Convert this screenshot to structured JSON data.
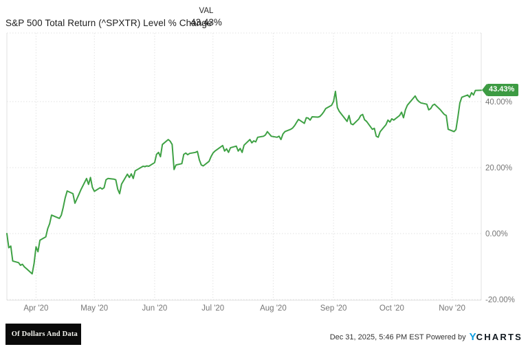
{
  "header": {
    "series_title": "S&P 500 Total Return (^SPXTR) Level % Change",
    "val_label": "VAL",
    "val_value": "43.43%"
  },
  "footer": {
    "logo_text": "Of Dollars And Data",
    "timestamp": "Dec 31, 2025, 5:46 PM EST",
    "powered_by": "Powered by",
    "brand_y": "Y",
    "brand_charts": "CHARTS"
  },
  "chart_data": {
    "type": "line",
    "title": "S&P 500 Total Return (^SPXTR) Level % Change",
    "grid": "dotted",
    "legend_position": "none",
    "line_color": "#3ea144",
    "grid_color": "#e2e2e2",
    "axis_label_color": "#757575",
    "badge": {
      "label": "43.43%",
      "bg": "#3d9b43",
      "text": "#ffffff"
    },
    "xlim": [
      "2020-03-17",
      "2020-11-16"
    ],
    "ylim": [
      -20.2,
      60.8
    ],
    "x_ticks": [
      {
        "date": "2020-04-01",
        "label": "Apr '20"
      },
      {
        "date": "2020-05-01",
        "label": "May '20"
      },
      {
        "date": "2020-06-01",
        "label": "Jun '20"
      },
      {
        "date": "2020-07-01",
        "label": "Jul '20"
      },
      {
        "date": "2020-08-01",
        "label": "Aug '20"
      },
      {
        "date": "2020-09-01",
        "label": "Sep '20"
      },
      {
        "date": "2020-10-01",
        "label": "Oct '20"
      },
      {
        "date": "2020-11-01",
        "label": "Nov '20"
      }
    ],
    "y_ticks": [
      {
        "value": 40,
        "label": "40.00%"
      },
      {
        "value": 20,
        "label": "20.00%"
      },
      {
        "value": 0,
        "label": "0.00%"
      },
      {
        "value": -20,
        "label": "-20.00%"
      }
    ],
    "series": [
      {
        "name": "S&P 500 Total Return (^SPXTR) Level % Change",
        "final_value": 43.43,
        "points": [
          [
            "2020-03-17",
            0.0
          ],
          [
            "2020-03-18",
            -4.3
          ],
          [
            "2020-03-19",
            -3.8
          ],
          [
            "2020-03-20",
            -8.3
          ],
          [
            "2020-03-23",
            -8.8
          ],
          [
            "2020-03-24",
            -9.6
          ],
          [
            "2020-03-25",
            -9.3
          ],
          [
            "2020-03-26",
            -10.1
          ],
          [
            "2020-03-27",
            -10.6
          ],
          [
            "2020-03-30",
            -12.2
          ],
          [
            "2020-03-31",
            -9.0
          ],
          [
            "2020-04-01",
            -4.0
          ],
          [
            "2020-04-02",
            -5.5
          ],
          [
            "2020-04-03",
            -2.0
          ],
          [
            "2020-04-06",
            -1.0
          ],
          [
            "2020-04-07",
            1.5
          ],
          [
            "2020-04-08",
            3.0
          ],
          [
            "2020-04-09",
            5.6
          ],
          [
            "2020-04-13",
            4.6
          ],
          [
            "2020-04-14",
            5.6
          ],
          [
            "2020-04-15",
            8.0
          ],
          [
            "2020-04-16",
            10.8
          ],
          [
            "2020-04-17",
            12.9
          ],
          [
            "2020-04-20",
            12.1
          ],
          [
            "2020-04-21",
            9.2
          ],
          [
            "2020-04-22",
            10.5
          ],
          [
            "2020-04-23",
            11.8
          ],
          [
            "2020-04-24",
            13.2
          ],
          [
            "2020-04-27",
            16.7
          ],
          [
            "2020-04-28",
            14.9
          ],
          [
            "2020-04-29",
            17.0
          ],
          [
            "2020-04-30",
            14.0
          ],
          [
            "2020-05-01",
            12.8
          ],
          [
            "2020-05-04",
            13.9
          ],
          [
            "2020-05-05",
            13.5
          ],
          [
            "2020-05-06",
            13.9
          ],
          [
            "2020-05-07",
            16.3
          ],
          [
            "2020-05-08",
            16.7
          ],
          [
            "2020-05-11",
            16.5
          ],
          [
            "2020-05-12",
            16.3
          ],
          [
            "2020-05-13",
            13.5
          ],
          [
            "2020-05-14",
            12.1
          ],
          [
            "2020-05-15",
            15.0
          ],
          [
            "2020-05-18",
            18.0
          ],
          [
            "2020-05-19",
            17.0
          ],
          [
            "2020-05-20",
            18.1
          ],
          [
            "2020-05-21",
            16.7
          ],
          [
            "2020-05-22",
            19.0
          ],
          [
            "2020-05-26",
            20.4
          ],
          [
            "2020-05-27",
            20.3
          ],
          [
            "2020-05-28",
            20.5
          ],
          [
            "2020-05-29",
            20.4
          ],
          [
            "2020-06-01",
            21.5
          ],
          [
            "2020-06-02",
            24.0
          ],
          [
            "2020-06-03",
            24.6
          ],
          [
            "2020-06-04",
            23.3
          ],
          [
            "2020-06-05",
            27.0
          ],
          [
            "2020-06-08",
            28.5
          ],
          [
            "2020-06-09",
            28.0
          ],
          [
            "2020-06-10",
            27.0
          ],
          [
            "2020-06-11",
            19.4
          ],
          [
            "2020-06-12",
            20.8
          ],
          [
            "2020-06-15",
            21.2
          ],
          [
            "2020-06-16",
            24.0
          ],
          [
            "2020-06-17",
            24.4
          ],
          [
            "2020-06-18",
            23.9
          ],
          [
            "2020-06-19",
            24.3
          ],
          [
            "2020-06-22",
            24.6
          ],
          [
            "2020-06-23",
            24.9
          ],
          [
            "2020-06-24",
            22.3
          ],
          [
            "2020-06-25",
            20.8
          ],
          [
            "2020-06-26",
            20.5
          ],
          [
            "2020-06-29",
            21.9
          ],
          [
            "2020-06-30",
            23.3
          ],
          [
            "2020-07-01",
            24.4
          ],
          [
            "2020-07-02",
            25.0
          ],
          [
            "2020-07-06",
            26.7
          ],
          [
            "2020-07-07",
            25.0
          ],
          [
            "2020-07-08",
            25.7
          ],
          [
            "2020-07-09",
            24.6
          ],
          [
            "2020-07-10",
            26.0
          ],
          [
            "2020-07-13",
            26.5
          ],
          [
            "2020-07-14",
            25.0
          ],
          [
            "2020-07-15",
            25.8
          ],
          [
            "2020-07-16",
            24.6
          ],
          [
            "2020-07-17",
            26.8
          ],
          [
            "2020-07-20",
            28.5
          ],
          [
            "2020-07-21",
            27.5
          ],
          [
            "2020-07-22",
            28.1
          ],
          [
            "2020-07-23",
            27.8
          ],
          [
            "2020-07-24",
            29.2
          ],
          [
            "2020-07-27",
            29.5
          ],
          [
            "2020-07-28",
            29.9
          ],
          [
            "2020-07-29",
            30.9
          ],
          [
            "2020-07-30",
            30.2
          ],
          [
            "2020-07-31",
            29.5
          ],
          [
            "2020-08-03",
            29.2
          ],
          [
            "2020-08-04",
            29.5
          ],
          [
            "2020-08-05",
            28.5
          ],
          [
            "2020-08-06",
            30.2
          ],
          [
            "2020-08-07",
            30.9
          ],
          [
            "2020-08-10",
            31.6
          ],
          [
            "2020-08-11",
            32.0
          ],
          [
            "2020-08-12",
            32.7
          ],
          [
            "2020-08-13",
            33.7
          ],
          [
            "2020-08-14",
            34.6
          ],
          [
            "2020-08-17",
            33.4
          ],
          [
            "2020-08-18",
            35.1
          ],
          [
            "2020-08-19",
            35.0
          ],
          [
            "2020-08-20",
            34.4
          ],
          [
            "2020-08-21",
            35.4
          ],
          [
            "2020-08-24",
            35.3
          ],
          [
            "2020-08-25",
            35.5
          ],
          [
            "2020-08-26",
            36.1
          ],
          [
            "2020-08-27",
            36.9
          ],
          [
            "2020-08-28",
            37.9
          ],
          [
            "2020-08-31",
            38.9
          ],
          [
            "2020-09-01",
            40.0
          ],
          [
            "2020-09-02",
            43.1
          ],
          [
            "2020-09-03",
            38.2
          ],
          [
            "2020-09-04",
            37.0
          ],
          [
            "2020-09-08",
            34.0
          ],
          [
            "2020-09-09",
            35.8
          ],
          [
            "2020-09-10",
            33.3
          ],
          [
            "2020-09-11",
            33.0
          ],
          [
            "2020-09-14",
            34.7
          ],
          [
            "2020-09-15",
            35.8
          ],
          [
            "2020-09-16",
            36.1
          ],
          [
            "2020-09-17",
            34.5
          ],
          [
            "2020-09-18",
            34.0
          ],
          [
            "2020-09-21",
            31.6
          ],
          [
            "2020-09-22",
            31.9
          ],
          [
            "2020-09-23",
            29.5
          ],
          [
            "2020-09-24",
            29.2
          ],
          [
            "2020-09-25",
            30.9
          ],
          [
            "2020-09-28",
            33.0
          ],
          [
            "2020-09-29",
            34.4
          ],
          [
            "2020-09-30",
            33.8
          ],
          [
            "2020-10-01",
            34.8
          ],
          [
            "2020-10-02",
            34.4
          ],
          [
            "2020-10-05",
            35.8
          ],
          [
            "2020-10-06",
            36.8
          ],
          [
            "2020-10-07",
            35.1
          ],
          [
            "2020-10-08",
            37.5
          ],
          [
            "2020-10-09",
            38.9
          ],
          [
            "2020-10-12",
            41.0
          ],
          [
            "2020-10-13",
            41.7
          ],
          [
            "2020-10-14",
            40.6
          ],
          [
            "2020-10-15",
            40.0
          ],
          [
            "2020-10-16",
            39.6
          ],
          [
            "2020-10-19",
            39.2
          ],
          [
            "2020-10-20",
            37.5
          ],
          [
            "2020-10-21",
            37.9
          ],
          [
            "2020-10-22",
            38.9
          ],
          [
            "2020-10-23",
            39.2
          ],
          [
            "2020-10-26",
            37.5
          ],
          [
            "2020-10-27",
            36.8
          ],
          [
            "2020-10-28",
            36.1
          ],
          [
            "2020-10-29",
            35.8
          ],
          [
            "2020-10-30",
            31.6
          ],
          [
            "2020-11-02",
            30.9
          ],
          [
            "2020-11-03",
            31.5
          ],
          [
            "2020-11-04",
            35.4
          ],
          [
            "2020-11-05",
            39.6
          ],
          [
            "2020-11-06",
            41.3
          ],
          [
            "2020-11-09",
            42.0
          ],
          [
            "2020-11-10",
            41.3
          ],
          [
            "2020-11-11",
            42.7
          ],
          [
            "2020-11-12",
            42.0
          ],
          [
            "2020-11-13",
            43.4
          ],
          [
            "2020-11-16",
            43.43
          ]
        ]
      }
    ]
  }
}
